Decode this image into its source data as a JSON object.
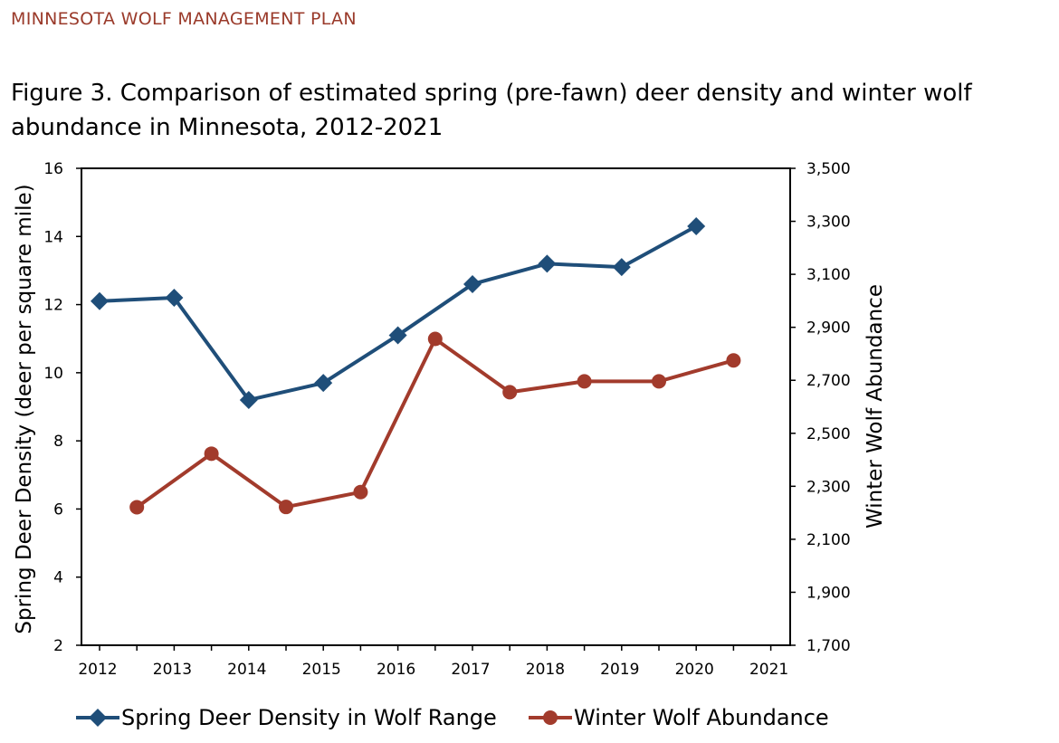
{
  "header": {
    "text": "MINNESOTA WOLF MANAGEMENT PLAN",
    "color": "#9a3a2a"
  },
  "figure_title": "Figure 3. Comparison of estimated spring (pre-fawn) deer density and winter wolf abundance in Minnesota, 2012-2021",
  "chart_data": {
    "type": "line",
    "xlabel": "",
    "x_tick_labels": [
      "2012",
      "2013",
      "2014",
      "2015",
      "2016",
      "2017",
      "2018",
      "2019",
      "2020",
      "2021"
    ],
    "y_left": {
      "label": "Spring Deer Density (deer per square mile)",
      "range": [
        2,
        16
      ],
      "ticks": [
        2,
        4,
        6,
        8,
        10,
        12,
        14,
        16
      ]
    },
    "y_right": {
      "label": "Winter Wolf Abundance",
      "range": [
        1700,
        3500
      ],
      "ticks": [
        1700,
        1900,
        2100,
        2300,
        2500,
        2700,
        2900,
        3100,
        3300,
        3500
      ],
      "tick_labels": [
        "1,700",
        "1,900",
        "2,100",
        "2,300",
        "2,500",
        "2,700",
        "2,900",
        "3,100",
        "3,300",
        "3,500"
      ]
    },
    "grid": false,
    "legend_position": "bottom",
    "series": [
      {
        "name": "Spring Deer Density in Wolf Range",
        "axis": "left",
        "marker": "diamond",
        "color": "#1f4e79",
        "x": [
          2012,
          2013,
          2014,
          2015,
          2016,
          2017,
          2018,
          2019,
          2020
        ],
        "values": [
          12.1,
          12.2,
          9.2,
          9.7,
          11.1,
          12.6,
          13.2,
          13.1,
          14.3
        ]
      },
      {
        "name": "Winter Wolf Abundance",
        "axis": "right",
        "marker": "circle",
        "color": "#a23b2c",
        "x": [
          2012.5,
          2013.5,
          2014.5,
          2015.5,
          2016.5,
          2017.5,
          2018.5,
          2019.5,
          2020.5
        ],
        "values": [
          2221,
          2423,
          2222,
          2278,
          2856,
          2655,
          2696,
          2696,
          2775
        ]
      }
    ]
  }
}
